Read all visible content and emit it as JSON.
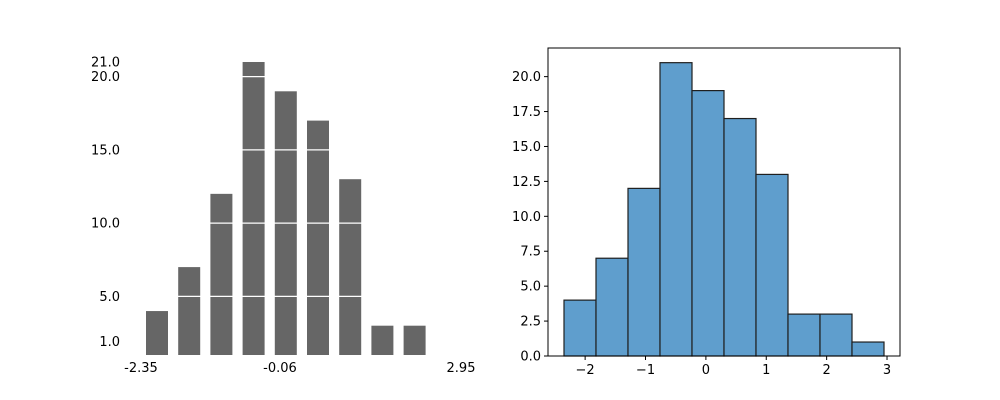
{
  "chart_data": [
    {
      "type": "bar",
      "style": "tufte-histogram",
      "bar_color": "#666666",
      "gridline_color": "#ffffff",
      "values": [
        4,
        7,
        12,
        21,
        19,
        17,
        13,
        3,
        3,
        1
      ],
      "x_tick_labels": [
        "-2.35",
        "-0.06",
        "2.95"
      ],
      "y_tick_labels": [
        "1.0",
        "5.0",
        "10.0",
        "15.0",
        "20.0",
        "21.0"
      ],
      "y_ticks": [
        1,
        5,
        10,
        15,
        20,
        21
      ],
      "ylim": [
        1,
        21
      ],
      "frame": false
    },
    {
      "type": "bar",
      "style": "histogram",
      "bar_color": "#5f9ecd",
      "edge_color": "#1f1f1f",
      "bin_edges": [
        -2.35,
        -1.82,
        -1.29,
        -0.76,
        -0.23,
        0.3,
        0.83,
        1.36,
        1.89,
        2.42,
        2.95
      ],
      "values": [
        4,
        7,
        12,
        21,
        19,
        17,
        13,
        3,
        3,
        1
      ],
      "x_ticks": [
        -2,
        -1,
        0,
        1,
        2,
        3
      ],
      "x_tick_labels": [
        "−2",
        "−1",
        "0",
        "1",
        "2",
        "3"
      ],
      "y_ticks": [
        0,
        2.5,
        5,
        7.5,
        10,
        12.5,
        15,
        17.5,
        20
      ],
      "y_tick_labels": [
        "0.0",
        "2.5",
        "5.0",
        "7.5",
        "10.0",
        "12.5",
        "15.0",
        "17.5",
        "20.0"
      ],
      "xlim": [
        -2.615,
        3.215
      ],
      "ylim": [
        0,
        22.05
      ],
      "frame": true
    }
  ]
}
